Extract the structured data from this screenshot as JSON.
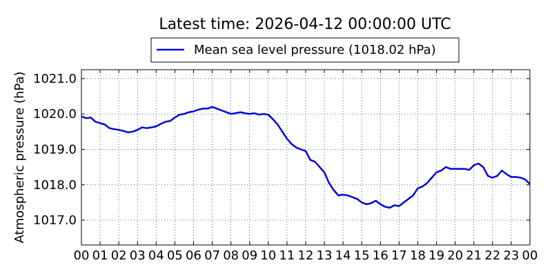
{
  "chart_data": {
    "type": "line",
    "title": "Latest time: 2026-04-12 00:00:00 UTC",
    "xlabel": "",
    "ylabel": "Atmospheric pressure (hPa)",
    "xlim": [
      0,
      24
    ],
    "ylim": [
      1016.3,
      1021.25
    ],
    "x_tick_values": [
      0,
      1,
      2,
      3,
      4,
      5,
      6,
      7,
      8,
      9,
      10,
      11,
      12,
      13,
      14,
      15,
      16,
      17,
      18,
      19,
      20,
      21,
      22,
      23,
      24
    ],
    "x_tick_labels": [
      "00",
      "01",
      "02",
      "03",
      "04",
      "05",
      "06",
      "07",
      "08",
      "09",
      "10",
      "11",
      "12",
      "13",
      "14",
      "15",
      "16",
      "17",
      "18",
      "19",
      "20",
      "21",
      "22",
      "23",
      "00"
    ],
    "y_tick_values": [
      1017.0,
      1018.0,
      1019.0,
      1020.0,
      1021.0
    ],
    "y_tick_labels": [
      "1017.0",
      "1018.0",
      "1019.0",
      "1020.0",
      "1021.0"
    ],
    "grid": true,
    "legend_position": "top-center",
    "series": [
      {
        "name": "Mean sea level pressure (1018.02 hPa)",
        "color": "#0000dd",
        "x": [
          0,
          0.25,
          0.5,
          0.75,
          1.0,
          1.25,
          1.5,
          1.75,
          2.0,
          2.25,
          2.5,
          2.75,
          3.0,
          3.25,
          3.5,
          3.75,
          4.0,
          4.25,
          4.5,
          4.75,
          5.0,
          5.25,
          5.5,
          5.75,
          6.0,
          6.25,
          6.5,
          6.75,
          7.0,
          7.25,
          7.5,
          7.75,
          8.0,
          8.25,
          8.5,
          8.75,
          9.0,
          9.25,
          9.5,
          9.75,
          10.0,
          10.25,
          10.5,
          10.75,
          11.0,
          11.25,
          11.5,
          11.75,
          12.0,
          12.25,
          12.5,
          12.75,
          13.0,
          13.25,
          13.5,
          13.75,
          14.0,
          14.25,
          14.5,
          14.75,
          15.0,
          15.25,
          15.5,
          15.75,
          16.0,
          16.25,
          16.5,
          16.75,
          17.0,
          17.25,
          17.5,
          17.75,
          18.0,
          18.25,
          18.5,
          18.75,
          19.0,
          19.25,
          19.5,
          19.75,
          20.0,
          20.25,
          20.5,
          20.75,
          21.0,
          21.25,
          21.5,
          21.75,
          22.0,
          22.25,
          22.5,
          22.75,
          23.0,
          23.25,
          23.5,
          23.75,
          24.0
        ],
        "values": [
          1019.93,
          1019.88,
          1019.9,
          1019.78,
          1019.74,
          1019.7,
          1019.6,
          1019.57,
          1019.55,
          1019.52,
          1019.48,
          1019.5,
          1019.55,
          1019.62,
          1019.6,
          1019.62,
          1019.65,
          1019.72,
          1019.78,
          1019.8,
          1019.9,
          1019.98,
          1020.0,
          1020.05,
          1020.07,
          1020.12,
          1020.15,
          1020.15,
          1020.2,
          1020.15,
          1020.1,
          1020.05,
          1020.0,
          1020.02,
          1020.05,
          1020.02,
          1020.0,
          1020.02,
          1019.98,
          1020.0,
          1019.98,
          1019.85,
          1019.7,
          1019.5,
          1019.3,
          1019.15,
          1019.05,
          1019.0,
          1018.95,
          1018.7,
          1018.65,
          1018.5,
          1018.35,
          1018.05,
          1017.85,
          1017.7,
          1017.72,
          1017.7,
          1017.65,
          1017.6,
          1017.5,
          1017.45,
          1017.48,
          1017.55,
          1017.45,
          1017.38,
          1017.35,
          1017.42,
          1017.4,
          1017.5,
          1017.6,
          1017.7,
          1017.9,
          1017.95,
          1018.05,
          1018.2,
          1018.35,
          1018.4,
          1018.5,
          1018.45,
          1018.45,
          1018.45,
          1018.45,
          1018.42,
          1018.55,
          1018.6,
          1018.5,
          1018.25,
          1018.2,
          1018.25,
          1018.4,
          1018.3,
          1018.22,
          1018.22,
          1018.2,
          1018.15,
          1018.02
        ]
      }
    ]
  }
}
